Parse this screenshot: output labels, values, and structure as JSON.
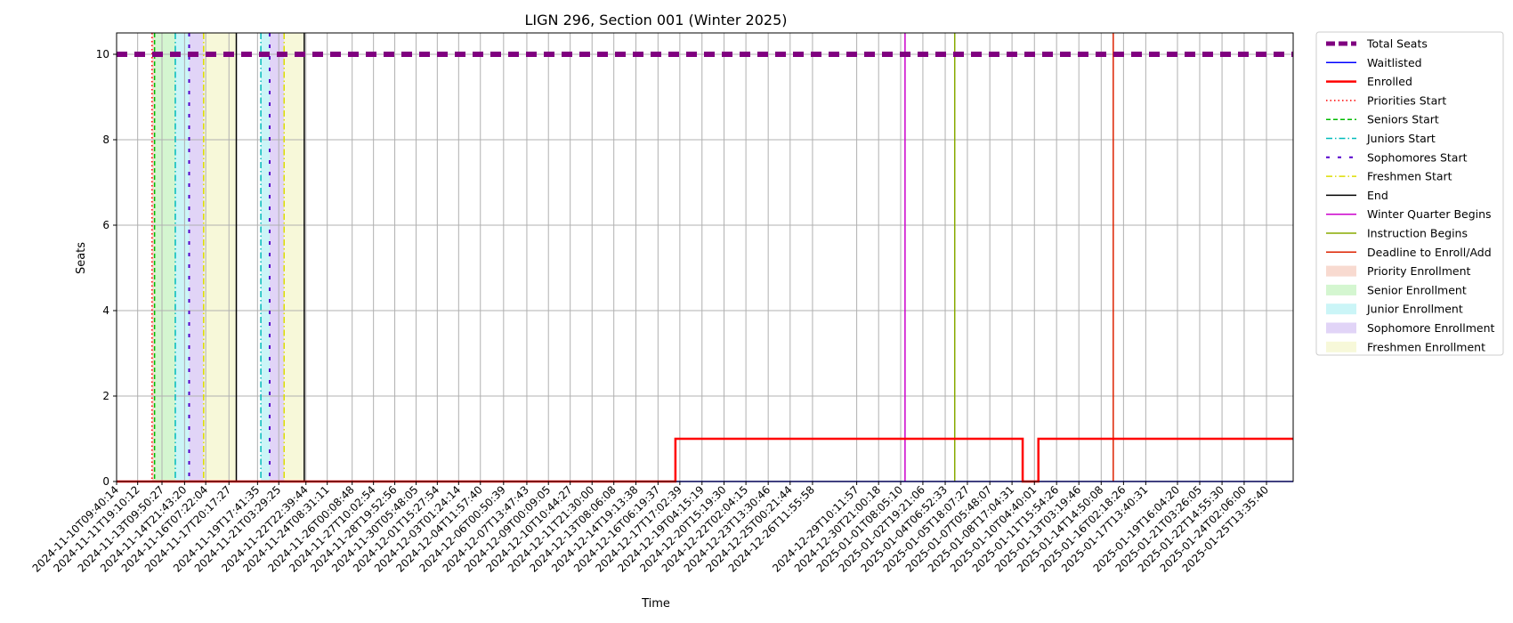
{
  "chart_data": {
    "type": "line",
    "title": "LIGN 296, Section 001 (Winter 2025)",
    "xlabel": "Time",
    "ylabel": "Seats",
    "ylim": [
      0,
      10.5
    ],
    "xlim": [
      "2024-11-10T09:40:14",
      "2025-01-27T08:00:00"
    ],
    "yticks": [
      0,
      2,
      4,
      6,
      8,
      10
    ],
    "grid": true,
    "legend_position": "outside-top-right",
    "xticks": [
      "2024-11-10T09:40:14",
      "2024-11-11T19:10:12",
      "2024-11-13T09:50:27",
      "2024-11-14T21:43:20",
      "2024-11-16T07:22:04",
      "2024-11-17T20:17:27",
      "2024-11-19T17:41:35",
      "2024-11-21T03:29:25",
      "2024-11-22T22:39:44",
      "2024-11-24T08:31:11",
      "2024-11-26T00:08:48",
      "2024-11-27T10:02:54",
      "2024-11-28T19:52:56",
      "2024-11-30T05:48:05",
      "2024-12-01T15:27:54",
      "2024-12-03T01:24:14",
      "2024-12-04T11:57:40",
      "2024-12-06T00:50:39",
      "2024-12-07T13:47:43",
      "2024-12-09T00:09:05",
      "2024-12-10T10:44:27",
      "2024-12-11T21:30:00",
      "2024-12-13T08:06:08",
      "2024-12-14T19:13:38",
      "2024-12-16T06:19:37",
      "2024-12-17T17:02:39",
      "2024-12-19T04:15:19",
      "2024-12-20T15:19:30",
      "2024-12-22T02:04:15",
      "2024-12-23T13:30:46",
      "2024-12-25T00:21:44",
      "2024-12-26T11:55:58",
      "2024-12-29T10:11:57",
      "2024-12-30T21:00:18",
      "2025-01-01T08:05:10",
      "2025-01-02T19:21:06",
      "2025-01-04T06:52:33",
      "2025-01-05T18:07:27",
      "2025-01-07T05:48:07",
      "2025-01-08T17:04:31",
      "2025-01-10T04:40:01",
      "2025-01-11T15:54:26",
      "2025-01-13T03:19:46",
      "2025-01-14T14:50:08",
      "2025-01-16T02:18:26",
      "2025-01-17T13:40:31",
      "2025-01-19T16:04:20",
      "2025-01-21T03:26:05",
      "2025-01-22T14:55:30",
      "2025-01-24T02:06:00",
      "2025-01-25T13:35:40"
    ],
    "series": [
      {
        "name": "Total Seats",
        "color": "#800080",
        "style": "dashed-thick",
        "points": [
          [
            "2024-11-10T09:40:14",
            10
          ],
          [
            "2025-01-27T08:00:00",
            10
          ]
        ]
      },
      {
        "name": "Waitlisted",
        "color": "#0000ff",
        "style": "solid",
        "points": [
          [
            "2024-11-10T09:40:14",
            0
          ],
          [
            "2025-01-27T08:00:00",
            0
          ]
        ]
      },
      {
        "name": "Enrolled",
        "color": "#ff0000",
        "style": "solid-thick",
        "points": [
          [
            "2024-11-10T09:40:14",
            0
          ],
          [
            "2024-12-17T10:00:00",
            0
          ],
          [
            "2024-12-17T10:00:00",
            1
          ],
          [
            "2025-01-09T10:00:00",
            1
          ],
          [
            "2025-01-09T10:00:00",
            0
          ],
          [
            "2025-01-10T11:00:00",
            0
          ],
          [
            "2025-01-10T11:00:00",
            1
          ],
          [
            "2025-01-27T08:00:00",
            1
          ]
        ]
      }
    ],
    "vlines": [
      {
        "series": "Priorities Start",
        "x": "2024-11-12T18:00:00",
        "color": "#ff0000",
        "style": "dotted"
      },
      {
        "series": "Seniors Start",
        "x": "2024-11-12T22:00:00",
        "color": "#00bb00",
        "style": "dashed"
      },
      {
        "series": "Juniors Start",
        "x": "2024-11-14T07:00:00",
        "color": "#00bbbb",
        "style": "dashdot"
      },
      {
        "series": "Sophomores Start",
        "x": "2024-11-15T05:00:00",
        "color": "#5500cc",
        "style": "loosedash"
      },
      {
        "series": "Freshmen Start",
        "x": "2024-11-16T04:00:00",
        "color": "#dddd00",
        "style": "dashdot"
      },
      {
        "series": "End",
        "x": "2024-11-18T08:00:00",
        "color": "#000000",
        "style": "solid"
      },
      {
        "series": "Juniors Start",
        "x": "2024-11-19T23:00:00",
        "color": "#00bbbb",
        "style": "dashdot"
      },
      {
        "series": "Sophomores Start",
        "x": "2024-11-20T13:00:00",
        "color": "#5500cc",
        "style": "loosedash"
      },
      {
        "series": "Freshmen Start",
        "x": "2024-11-21T12:00:00",
        "color": "#dddd00",
        "style": "dashdot"
      },
      {
        "series": "End",
        "x": "2024-11-22T20:00:00",
        "color": "#000000",
        "style": "solid"
      },
      {
        "series": "Winter Quarter Begins",
        "x": "2025-01-01T15:00:00",
        "color": "#cc00cc",
        "style": "solid"
      },
      {
        "series": "Instruction Begins",
        "x": "2025-01-04T22:00:00",
        "color": "#88aa00",
        "style": "solid"
      },
      {
        "series": "Deadline to Enroll/Add",
        "x": "2025-01-15T10:00:00",
        "color": "#dd2200",
        "style": "solid"
      }
    ],
    "spans": [
      {
        "series": "Priority Enrollment",
        "x0": "2024-11-12T18:00:00",
        "x1": "2024-11-12T22:00:00",
        "color": "#f4c2b0"
      },
      {
        "series": "Senior Enrollment",
        "x0": "2024-11-12T22:00:00",
        "x1": "2024-11-14T07:00:00",
        "color": "#b8f0b0"
      },
      {
        "series": "Junior Enrollment",
        "x0": "2024-11-14T07:00:00",
        "x1": "2024-11-15T05:00:00",
        "color": "#a8eef2"
      },
      {
        "series": "Sophomore Enrollment",
        "x0": "2024-11-15T05:00:00",
        "x1": "2024-11-16T04:00:00",
        "color": "#cdb8f2"
      },
      {
        "series": "Freshmen Enrollment",
        "x0": "2024-11-16T04:00:00",
        "x1": "2024-11-18T08:00:00",
        "color": "#f2f4c0"
      },
      {
        "series": "Junior Enrollment",
        "x0": "2024-11-19T23:00:00",
        "x1": "2024-11-20T13:00:00",
        "color": "#a8eef2"
      },
      {
        "series": "Sophomore Enrollment",
        "x0": "2024-11-20T13:00:00",
        "x1": "2024-11-21T12:00:00",
        "color": "#cdb8f2"
      },
      {
        "series": "Freshmen Enrollment",
        "x0": "2024-11-21T12:00:00",
        "x1": "2024-11-22T20:00:00",
        "color": "#f2f4c0"
      }
    ],
    "legend": [
      {
        "label": "Total Seats",
        "kind": "line",
        "color": "#800080",
        "style": "dashed-thick"
      },
      {
        "label": "Waitlisted",
        "kind": "line",
        "color": "#0000ff",
        "style": "solid"
      },
      {
        "label": "Enrolled",
        "kind": "line",
        "color": "#ff0000",
        "style": "solid-thick"
      },
      {
        "label": "Priorities Start",
        "kind": "line",
        "color": "#ff0000",
        "style": "dotted"
      },
      {
        "label": "Seniors Start",
        "kind": "line",
        "color": "#00bb00",
        "style": "dashed"
      },
      {
        "label": "Juniors Start",
        "kind": "line",
        "color": "#00bbbb",
        "style": "dashdot"
      },
      {
        "label": "Sophomores Start",
        "kind": "line",
        "color": "#5500cc",
        "style": "loosedash"
      },
      {
        "label": "Freshmen Start",
        "kind": "line",
        "color": "#dddd00",
        "style": "dashdot"
      },
      {
        "label": "End",
        "kind": "line",
        "color": "#000000",
        "style": "solid"
      },
      {
        "label": "Winter Quarter Begins",
        "kind": "line",
        "color": "#cc00cc",
        "style": "solid"
      },
      {
        "label": "Instruction Begins",
        "kind": "line",
        "color": "#88aa00",
        "style": "solid"
      },
      {
        "label": "Deadline to Enroll/Add",
        "kind": "line",
        "color": "#dd2200",
        "style": "solid"
      },
      {
        "label": "Priority Enrollment",
        "kind": "patch",
        "color": "#f4c2b0"
      },
      {
        "label": "Senior Enrollment",
        "kind": "patch",
        "color": "#b8f0b0"
      },
      {
        "label": "Junior Enrollment",
        "kind": "patch",
        "color": "#a8eef2"
      },
      {
        "label": "Sophomore Enrollment",
        "kind": "patch",
        "color": "#cdb8f2"
      },
      {
        "label": "Freshmen Enrollment",
        "kind": "patch",
        "color": "#f2f4c0"
      }
    ]
  }
}
